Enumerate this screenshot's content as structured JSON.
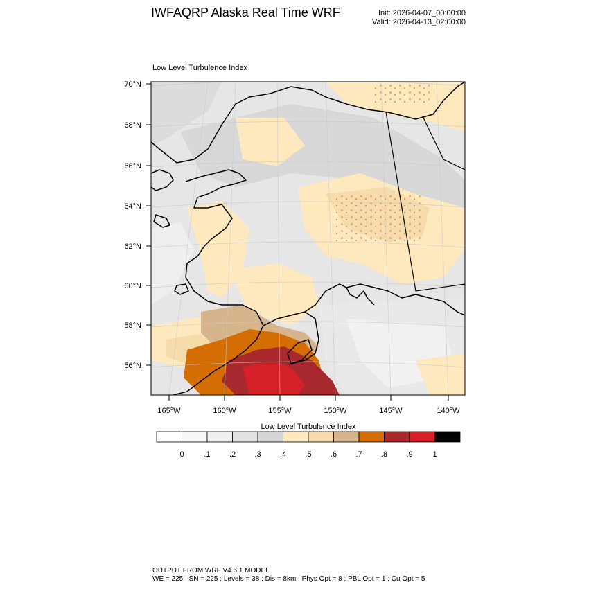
{
  "title": "IWFAQRP Alaska Real Time WRF",
  "init": "Init: 2026-04-07_00:00:00",
  "valid": "Valid: 2026-04-13_02:00:00",
  "panel_label": "Low Level Turbulence Index",
  "lat_labels": [
    "70°N",
    "68°N",
    "66°N",
    "64°N",
    "62°N",
    "60°N",
    "58°N",
    "56°N"
  ],
  "lon_labels": [
    "165°W",
    "160°W",
    "155°W",
    "150°W",
    "145°W",
    "140°W"
  ],
  "colorbar": {
    "title": "Low Level Turbulence Index",
    "tick_labels": [
      "0",
      ".1",
      ".2",
      ".3",
      ".4",
      ".5",
      ".6",
      ".7",
      ".8",
      ".9",
      "1"
    ],
    "colors": [
      "#ffffff",
      "#f7f7f7",
      "#efefef",
      "#e2e2e2",
      "#d6d6d6",
      "#fee8be",
      "#f6dbab",
      "#d6b48c",
      "#d36d04",
      "#a8292d",
      "#d32127",
      "#000000"
    ]
  },
  "footer": {
    "line1": "OUTPUT FROM WRF V4.6.1 MODEL",
    "line2": "WE = 225 ; SN = 225 ; Levels = 38 ; Dis = 8km ; Phys Opt = 8 ; PBL Opt = 1 ; Cu Opt = 5"
  }
}
